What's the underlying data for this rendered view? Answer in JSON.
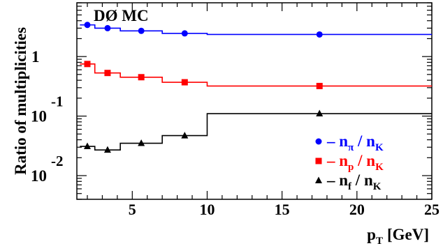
{
  "chart_data": {
    "type": "line",
    "title": "DØ MC",
    "xlabel": "p",
    "xlabel_sub": "T",
    "xlabel_unit": "[GeV]",
    "ylabel": "Ratio of multiplicities",
    "xlim": [
      1.3,
      25
    ],
    "ylim": [
      0.004,
      8
    ],
    "yscale": "log",
    "grid": false,
    "legend_position": "bottom-right",
    "x_ticks": [
      "5",
      "10",
      "15",
      "20",
      "25"
    ],
    "y_ticks": [
      {
        "base": "1",
        "exp": ""
      },
      {
        "base": "10",
        "exp": "-1"
      },
      {
        "base": "10",
        "exp": "-2"
      }
    ],
    "series": [
      {
        "legend": {
          "a": "n",
          "a_sub": "π",
          "b": "n",
          "b_sub": "K"
        },
        "color": "#0000ff",
        "marker": "circle",
        "edges": [
          1.5,
          2.5,
          4.2,
          7.0,
          10.0,
          25.0
        ],
        "levels": [
          3.4,
          3.0,
          2.7,
          2.45,
          2.35
        ],
        "points": [
          [
            2.0,
            3.4
          ],
          [
            3.35,
            3.0
          ],
          [
            5.6,
            2.7
          ],
          [
            8.5,
            2.45
          ],
          [
            17.5,
            2.35
          ]
        ]
      },
      {
        "legend": {
          "a": "n",
          "a_sub": "p",
          "b": "n",
          "b_sub": "K"
        },
        "color": "#ff0000",
        "marker": "square",
        "edges": [
          1.5,
          2.5,
          4.2,
          7.0,
          10.0,
          25.0
        ],
        "levels": [
          0.75,
          0.53,
          0.45,
          0.37,
          0.32
        ],
        "points": [
          [
            2.0,
            0.75
          ],
          [
            3.35,
            0.53
          ],
          [
            5.6,
            0.45
          ],
          [
            8.5,
            0.37
          ],
          [
            17.5,
            0.32
          ]
        ]
      },
      {
        "legend": {
          "a": "n",
          "a_sub": "f",
          "b": "n",
          "b_sub": "K"
        },
        "color": "#000000",
        "marker": "triangle",
        "edges": [
          1.5,
          2.5,
          4.2,
          7.0,
          10.0,
          25.0
        ],
        "levels": [
          0.031,
          0.027,
          0.035,
          0.047,
          0.11
        ],
        "points": [
          [
            2.0,
            0.031
          ],
          [
            3.35,
            0.027
          ],
          [
            5.6,
            0.035
          ],
          [
            8.5,
            0.047
          ],
          [
            17.5,
            0.11
          ]
        ]
      }
    ]
  }
}
